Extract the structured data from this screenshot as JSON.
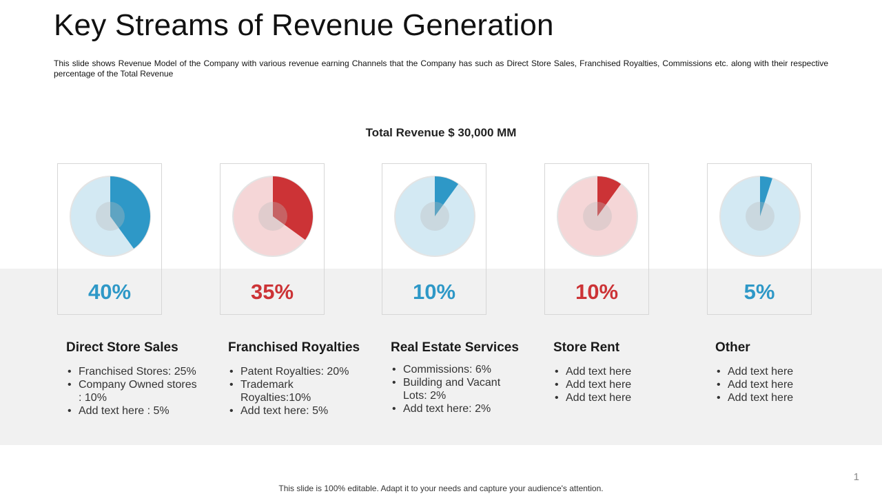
{
  "title": "Key Streams of Revenue Generation",
  "description": "This slide shows Revenue  Model of the Company with various  revenue  earning Channels that the Company  has such as Direct Store Sales, Franchised Royalties, Commissions etc. along with their respective  percentage of the Total Revenue",
  "total_revenue": "Total Revenue  $ 30,000 MM",
  "colors": {
    "blue": "#2e98c7",
    "blue_light": "#d3e9f3",
    "red": "#cc3336",
    "red_light": "#f5d6d7",
    "band": "#f1f1f1"
  },
  "chart_data": {
    "type": "pie",
    "title": "Total Revenue  $ 30,000 MM",
    "categories": [
      "Direct Store Sales",
      "Franchised Royalties",
      "Real Estate Services",
      "Store Rent",
      "Other"
    ],
    "values": [
      40,
      35,
      10,
      10,
      5
    ],
    "unit": "%"
  },
  "streams": [
    {
      "name": "Direct Store Sales",
      "percent_label": "40%",
      "value": 40,
      "theme": "blue",
      "bullets": [
        "Franchised Stores: 25%",
        "Company Owned stores : 10%",
        "Add text here : 5%"
      ]
    },
    {
      "name": "Franchised Royalties",
      "percent_label": "35%",
      "value": 35,
      "theme": "red",
      "bullets": [
        "Patent Royalties: 20%",
        "Trademark Royalties:10%",
        "Add text here: 5%"
      ]
    },
    {
      "name": "Real Estate Services",
      "percent_label": "10%",
      "value": 10,
      "theme": "blue",
      "bullets": [
        "Commissions: 6%",
        "Building and Vacant Lots: 2%",
        "Add text here: 2%"
      ]
    },
    {
      "name": "Store Rent",
      "percent_label": "10%",
      "value": 10,
      "theme": "red",
      "bullets": [
        "Add text here",
        "Add text here",
        "Add text here"
      ]
    },
    {
      "name": "Other",
      "percent_label": "5%",
      "value": 5,
      "theme": "blue",
      "bullets": [
        "Add text here",
        "Add text here",
        "Add text here"
      ]
    }
  ],
  "page_number": "1",
  "footer": "This slide is 100% editable. Adapt it to your needs and capture your audience's attention."
}
